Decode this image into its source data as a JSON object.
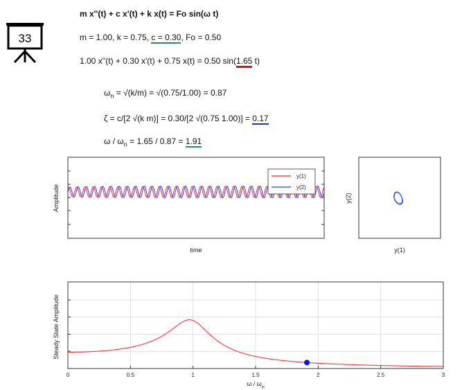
{
  "badge": {
    "number": "33"
  },
  "equations": {
    "main": "m x''(t) + c x'(t) + k x(t) = Fo sin(ω t)",
    "params_prefix": "m = 1.00, k = 0.75, ",
    "params_c": "c = 0.30",
    "params_suffix": ", Fo = 0.50",
    "numeric_prefix": "1.00 x''(t) + 0.30 x'(t) + 0.75 x(t) = 0.50 sin(",
    "numeric_omega": "1.65",
    "numeric_suffix": " t)",
    "omega_n_lhs": "ω",
    "omega_n_sub": "n",
    "omega_n_rhs": " = √(k/m) = √(0.75/1.00) = 0.87",
    "zeta_prefix": "ζ = c/[2 √(k m)] = 0.30/[2 √(0.75 1.00)] = ",
    "zeta_value": "0.17",
    "ratio_lhs": "ω / ω",
    "ratio_sub": "n",
    "ratio_mid": " = 1.65 / 0.87 = ",
    "ratio_value": "1.91"
  },
  "colors": {
    "red": "#ff2020",
    "blue": "#2040ff",
    "marker": "#0018e0",
    "grid": "#d8d8d8",
    "green": "#1a9a4a"
  },
  "chart_data": [
    {
      "type": "line",
      "xlabel": "time",
      "ylabel": "Amplitude",
      "legend_position": "top-right",
      "series": [
        {
          "name": "y(1)",
          "color": "#ff2020"
        },
        {
          "name": "y(2)",
          "color": "#2040ff"
        }
      ]
    },
    {
      "type": "scatter",
      "xlabel": "y(1)",
      "ylabel": "y(2)"
    },
    {
      "type": "line",
      "xlabel": "ω / ω",
      "xlabel_sub": "n",
      "ylabel": "Steady State Amplitude",
      "xlim": [
        0,
        3
      ],
      "xticks": [
        "0",
        "0.5",
        "1",
        "1.5",
        "2",
        "2.5",
        "3"
      ],
      "grid": true,
      "zeta": 0.17,
      "x": [
        0,
        0.25,
        0.5,
        0.75,
        0.9,
        0.98,
        1.05,
        1.2,
        1.5,
        1.91,
        2.5,
        3
      ],
      "y": [
        1.0,
        1.06,
        1.32,
        2.22,
        3.85,
        4.6,
        3.55,
        1.97,
        0.77,
        0.38,
        0.19,
        0.12
      ],
      "marker": {
        "x": 1.91,
        "y": 0.38
      }
    }
  ]
}
